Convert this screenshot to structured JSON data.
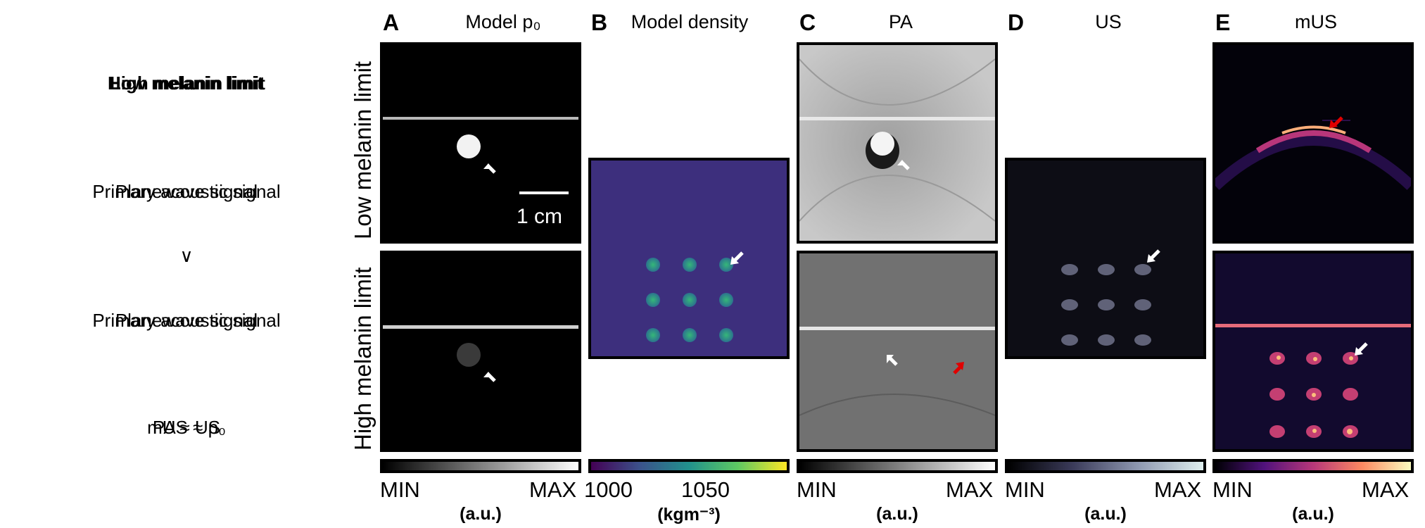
{
  "left_legend": {
    "line1": "High melanin limit",
    "line1_overlay": "Low melanin limit",
    "line2": "Primary acoustic signal",
    "line2_overlay": "Planewave signal",
    "symbol": "∨",
    "line3": "Primary acoustic signal",
    "line3_overlay": "Planewave signal",
    "line4": "mUS ≈ p₀",
    "line4_overlay": "PA ≈ US"
  },
  "row_labels": {
    "top": "Low melanin limit",
    "bottom": "High melanin limit"
  },
  "panels": [
    {
      "letter": "A",
      "title": "Model p₀",
      "cbar_min": "MIN",
      "cbar_max": "MAX",
      "unit": "(a.u.)"
    },
    {
      "letter": "B",
      "title": "Model density",
      "cbar_min": "1000",
      "cbar_max": "1050",
      "unit": "(kgm⁻³)"
    },
    {
      "letter": "C",
      "title": "PA",
      "cbar_min": "MIN",
      "cbar_max": "MAX",
      "unit": "(a.u.)"
    },
    {
      "letter": "D",
      "title": "US",
      "cbar_min": "MIN",
      "cbar_max": "MAX",
      "unit": "(a.u.)"
    },
    {
      "letter": "E",
      "title": "mUS",
      "cbar_min": "MIN",
      "cbar_max": "MAX",
      "unit": "(a.u.)"
    }
  ],
  "scalebar_label": "1 cm",
  "colors": {
    "arrow_white": "#ffffff",
    "arrow_red": "#e00000",
    "density_bg": "#3b2a7a"
  }
}
